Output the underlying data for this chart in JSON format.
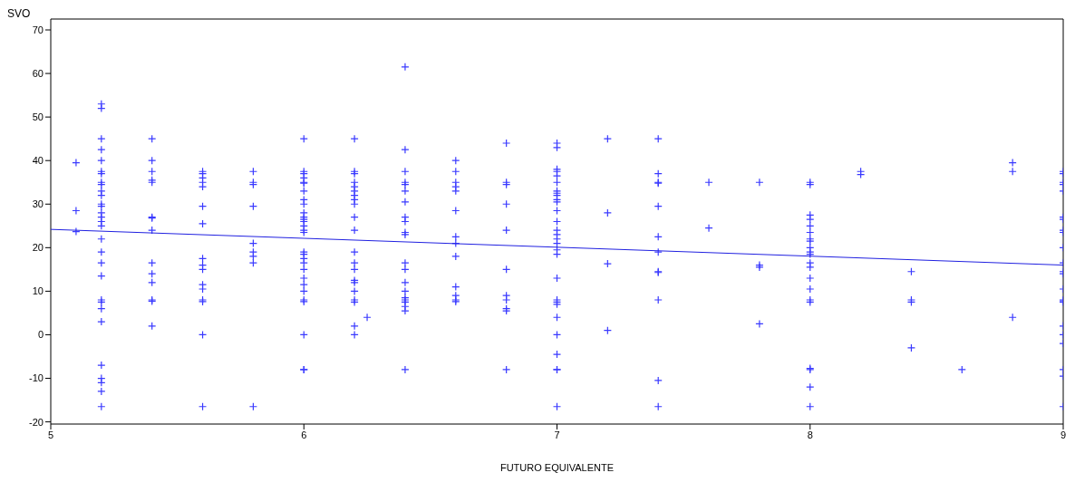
{
  "chart_data": {
    "type": "scatter",
    "xlabel": "FUTURO EQUIVALENTE",
    "ylabel": "SVO",
    "xlim": [
      5,
      9
    ],
    "xticks": [
      5,
      6,
      7,
      8,
      9
    ],
    "ylim": [
      -20.5,
      72.5
    ],
    "yticks": [
      -20,
      -10,
      0,
      10,
      20,
      30,
      40,
      50,
      60,
      70
    ],
    "marker": "cross",
    "series": [
      {
        "color": "#3a3aff",
        "x": [
          5.1,
          5.1,
          5.1,
          5.2,
          5.2,
          5.2,
          5.2,
          5.2,
          5.2,
          5.2,
          5.2,
          5.2,
          5.2,
          5.2,
          5.2,
          5.2,
          5.2,
          5.2,
          5.2,
          5.2,
          5.2,
          5.2,
          5.2,
          5.2,
          5.2,
          5.2,
          5.2,
          5.2,
          5.2,
          5.2,
          5.2,
          5.2,
          5.2,
          5.4,
          5.4,
          5.4,
          5.4,
          5.4,
          5.4,
          5.4,
          5.4,
          5.4,
          5.4,
          5.4,
          5.4,
          5.4,
          5.4,
          5.6,
          5.6,
          5.6,
          5.6,
          5.6,
          5.6,
          5.6,
          5.6,
          5.6,
          5.6,
          5.6,
          5.6,
          5.6,
          5.6,
          5.6,
          5.6,
          5.8,
          5.8,
          5.8,
          5.8,
          5.8,
          5.8,
          5.8,
          5.8,
          5.8,
          6,
          6,
          6,
          6,
          6,
          6,
          6,
          6,
          6,
          6,
          6,
          6,
          6,
          6,
          6,
          6,
          6,
          6,
          6,
          6,
          6,
          6,
          6,
          6,
          6,
          6,
          6,
          6,
          6,
          6.2,
          6.2,
          6.2,
          6.2,
          6.2,
          6.2,
          6.2,
          6.2,
          6.2,
          6.2,
          6.2,
          6.2,
          6.2,
          6.2,
          6.2,
          6.2,
          6.2,
          6.2,
          6.2,
          6.2,
          6.2,
          6.25,
          6.4,
          6.4,
          6.4,
          6.4,
          6.4,
          6.4,
          6.4,
          6.4,
          6.4,
          6.4,
          6.4,
          6.4,
          6.4,
          6.4,
          6.4,
          6.4,
          6.4,
          6.4,
          6.4,
          6.4,
          6.4,
          6.6,
          6.6,
          6.6,
          6.6,
          6.6,
          6.6,
          6.6,
          6.6,
          6.6,
          6.6,
          6.6,
          6.6,
          6.6,
          6.8,
          6.8,
          6.8,
          6.8,
          6.8,
          6.8,
          6.8,
          6.8,
          6.8,
          6.8,
          6.8,
          7,
          7,
          7,
          7,
          7,
          7,
          7,
          7,
          7,
          7,
          7,
          7,
          7,
          7,
          7,
          7,
          7,
          7,
          7,
          7,
          7,
          7,
          7,
          7,
          7,
          7,
          7,
          7,
          7,
          7.2,
          7.2,
          7.2,
          7.2,
          7.4,
          7.4,
          7.4,
          7.4,
          7.4,
          7.4,
          7.4,
          7.4,
          7.4,
          7.4,
          7.4,
          7.4,
          7.6,
          7.6,
          7.8,
          7.8,
          7.8,
          7.8,
          8,
          8,
          8,
          8,
          8,
          8,
          8,
          8,
          8,
          8,
          8,
          8,
          8,
          8,
          8,
          8,
          8,
          8,
          8,
          8,
          8,
          8.2,
          8.2,
          8.4,
          8.4,
          8.4,
          8.4,
          8.6,
          8.8,
          8.8,
          8.8,
          9,
          9,
          9,
          9,
          9,
          9,
          9,
          9,
          9,
          9,
          9,
          9,
          9,
          9,
          9,
          9,
          9,
          9,
          9,
          9,
          9,
          9,
          9
        ],
        "values": [
          39.5,
          28.5,
          23.7,
          53,
          52,
          45,
          42.5,
          40,
          37.5,
          37,
          35,
          34.5,
          33,
          32,
          30,
          29.5,
          28,
          27,
          26,
          25,
          22,
          19,
          16.5,
          13.5,
          8,
          7.5,
          6,
          3,
          -7,
          -10,
          -11,
          -13,
          -16.5,
          45,
          40,
          37.5,
          35.5,
          35,
          27,
          26.8,
          24,
          16.5,
          14,
          12,
          8,
          7.7,
          2,
          37.5,
          37,
          36,
          35,
          34,
          29.5,
          25.5,
          17.5,
          16,
          15,
          11.5,
          10.5,
          8,
          7.6,
          0,
          -16.5,
          37.5,
          35,
          34.5,
          29.5,
          21,
          19,
          18,
          16.5,
          -16.5,
          45,
          37.5,
          37,
          36,
          35,
          34.8,
          33,
          31,
          30,
          28,
          27,
          26.5,
          26,
          25,
          24,
          23.5,
          19,
          18.5,
          17.5,
          16.5,
          15,
          13,
          11.5,
          10,
          8,
          7.6,
          0,
          -8,
          -8,
          45,
          37.5,
          37,
          35,
          34,
          33,
          32,
          31,
          30,
          27,
          24,
          19,
          16.5,
          15,
          12.5,
          12,
          10,
          8,
          7.5,
          2,
          0,
          4,
          61.5,
          42.5,
          37.5,
          35,
          34.5,
          33,
          30.5,
          27,
          26,
          23.5,
          23,
          16.5,
          15,
          12,
          10,
          8.5,
          8,
          7.5,
          6.5,
          5.5,
          -8,
          40,
          37.5,
          35,
          34,
          33,
          28.5,
          22.5,
          21,
          18,
          11,
          9,
          8,
          7.6,
          44,
          35,
          34.5,
          30,
          24,
          15,
          9,
          8,
          6,
          5.5,
          -8,
          44,
          43,
          38,
          37.5,
          36.5,
          35,
          33,
          32.5,
          32,
          31,
          30.5,
          28.5,
          26,
          24,
          23,
          22,
          21,
          19.5,
          18.5,
          13,
          8,
          7.5,
          7,
          4,
          0,
          -4.5,
          -8,
          -8,
          -16.5,
          45,
          28,
          16.3,
          1,
          45,
          37,
          35,
          34.8,
          29.5,
          22.5,
          19,
          14.5,
          14.3,
          8,
          -10.5,
          -16.5,
          35,
          24.5,
          35,
          16,
          15.5,
          2.5,
          35,
          34.5,
          27.5,
          26.5,
          25,
          23.5,
          22,
          21.5,
          20,
          19,
          18.5,
          16.5,
          15.5,
          13,
          10.5,
          8,
          7.5,
          -8,
          -7.7,
          -12,
          -16.5,
          37.5,
          36.8,
          14.5,
          8,
          7.5,
          -3,
          -8,
          39.5,
          37.5,
          4,
          37.5,
          37,
          35,
          34.5,
          33,
          27,
          26.5,
          24,
          23.5,
          20,
          16.5,
          14.5,
          14,
          10.5,
          8,
          7.8,
          7.5,
          2,
          0,
          -2,
          -8,
          -9.5,
          -16.5
        ]
      },
      {
        "type": "line",
        "marker": "none",
        "color": "#2020e0",
        "x": [
          5,
          9
        ],
        "values": [
          24.2,
          16
        ]
      }
    ]
  }
}
